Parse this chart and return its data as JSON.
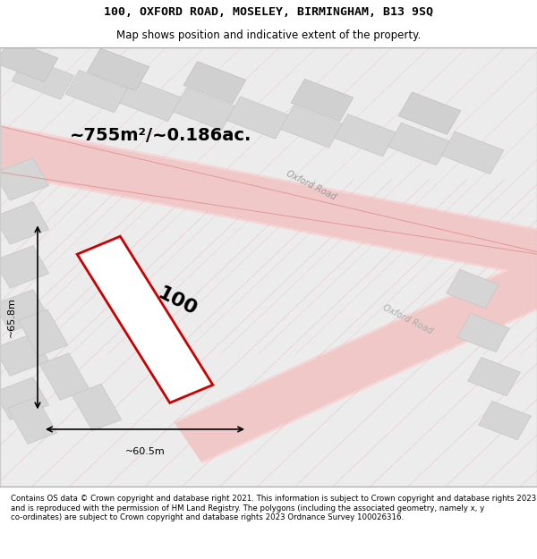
{
  "title_line1": "100, OXFORD ROAD, MOSELEY, BIRMINGHAM, B13 9SQ",
  "title_line2": "Map shows position and indicative extent of the property.",
  "footer_text": "Contains OS data © Crown copyright and database right 2021. This information is subject to Crown copyright and database rights 2023 and is reproduced with the permission of HM Land Registry. The polygons (including the associated geometry, namely x, y co-ordinates) are subject to Crown copyright and database rights 2023 Ordnance Survey 100026316.",
  "area_text": "~755m²/~0.186ac.",
  "width_label": "~60.5m",
  "height_label": "~65.8m",
  "property_label": "100",
  "bg_color": "#e8e8e8",
  "map_bg": "#f0f0f0",
  "road_color_light": "#f5c0c0",
  "road_color_dark": "#e08080",
  "property_fill": "#ffffff",
  "property_edge": "#cc0000",
  "building_fill": "#d0d0d0",
  "building_edge": "#b0b0b0",
  "road_label1": "Oxford Road",
  "road_label2": "Oxford Road"
}
